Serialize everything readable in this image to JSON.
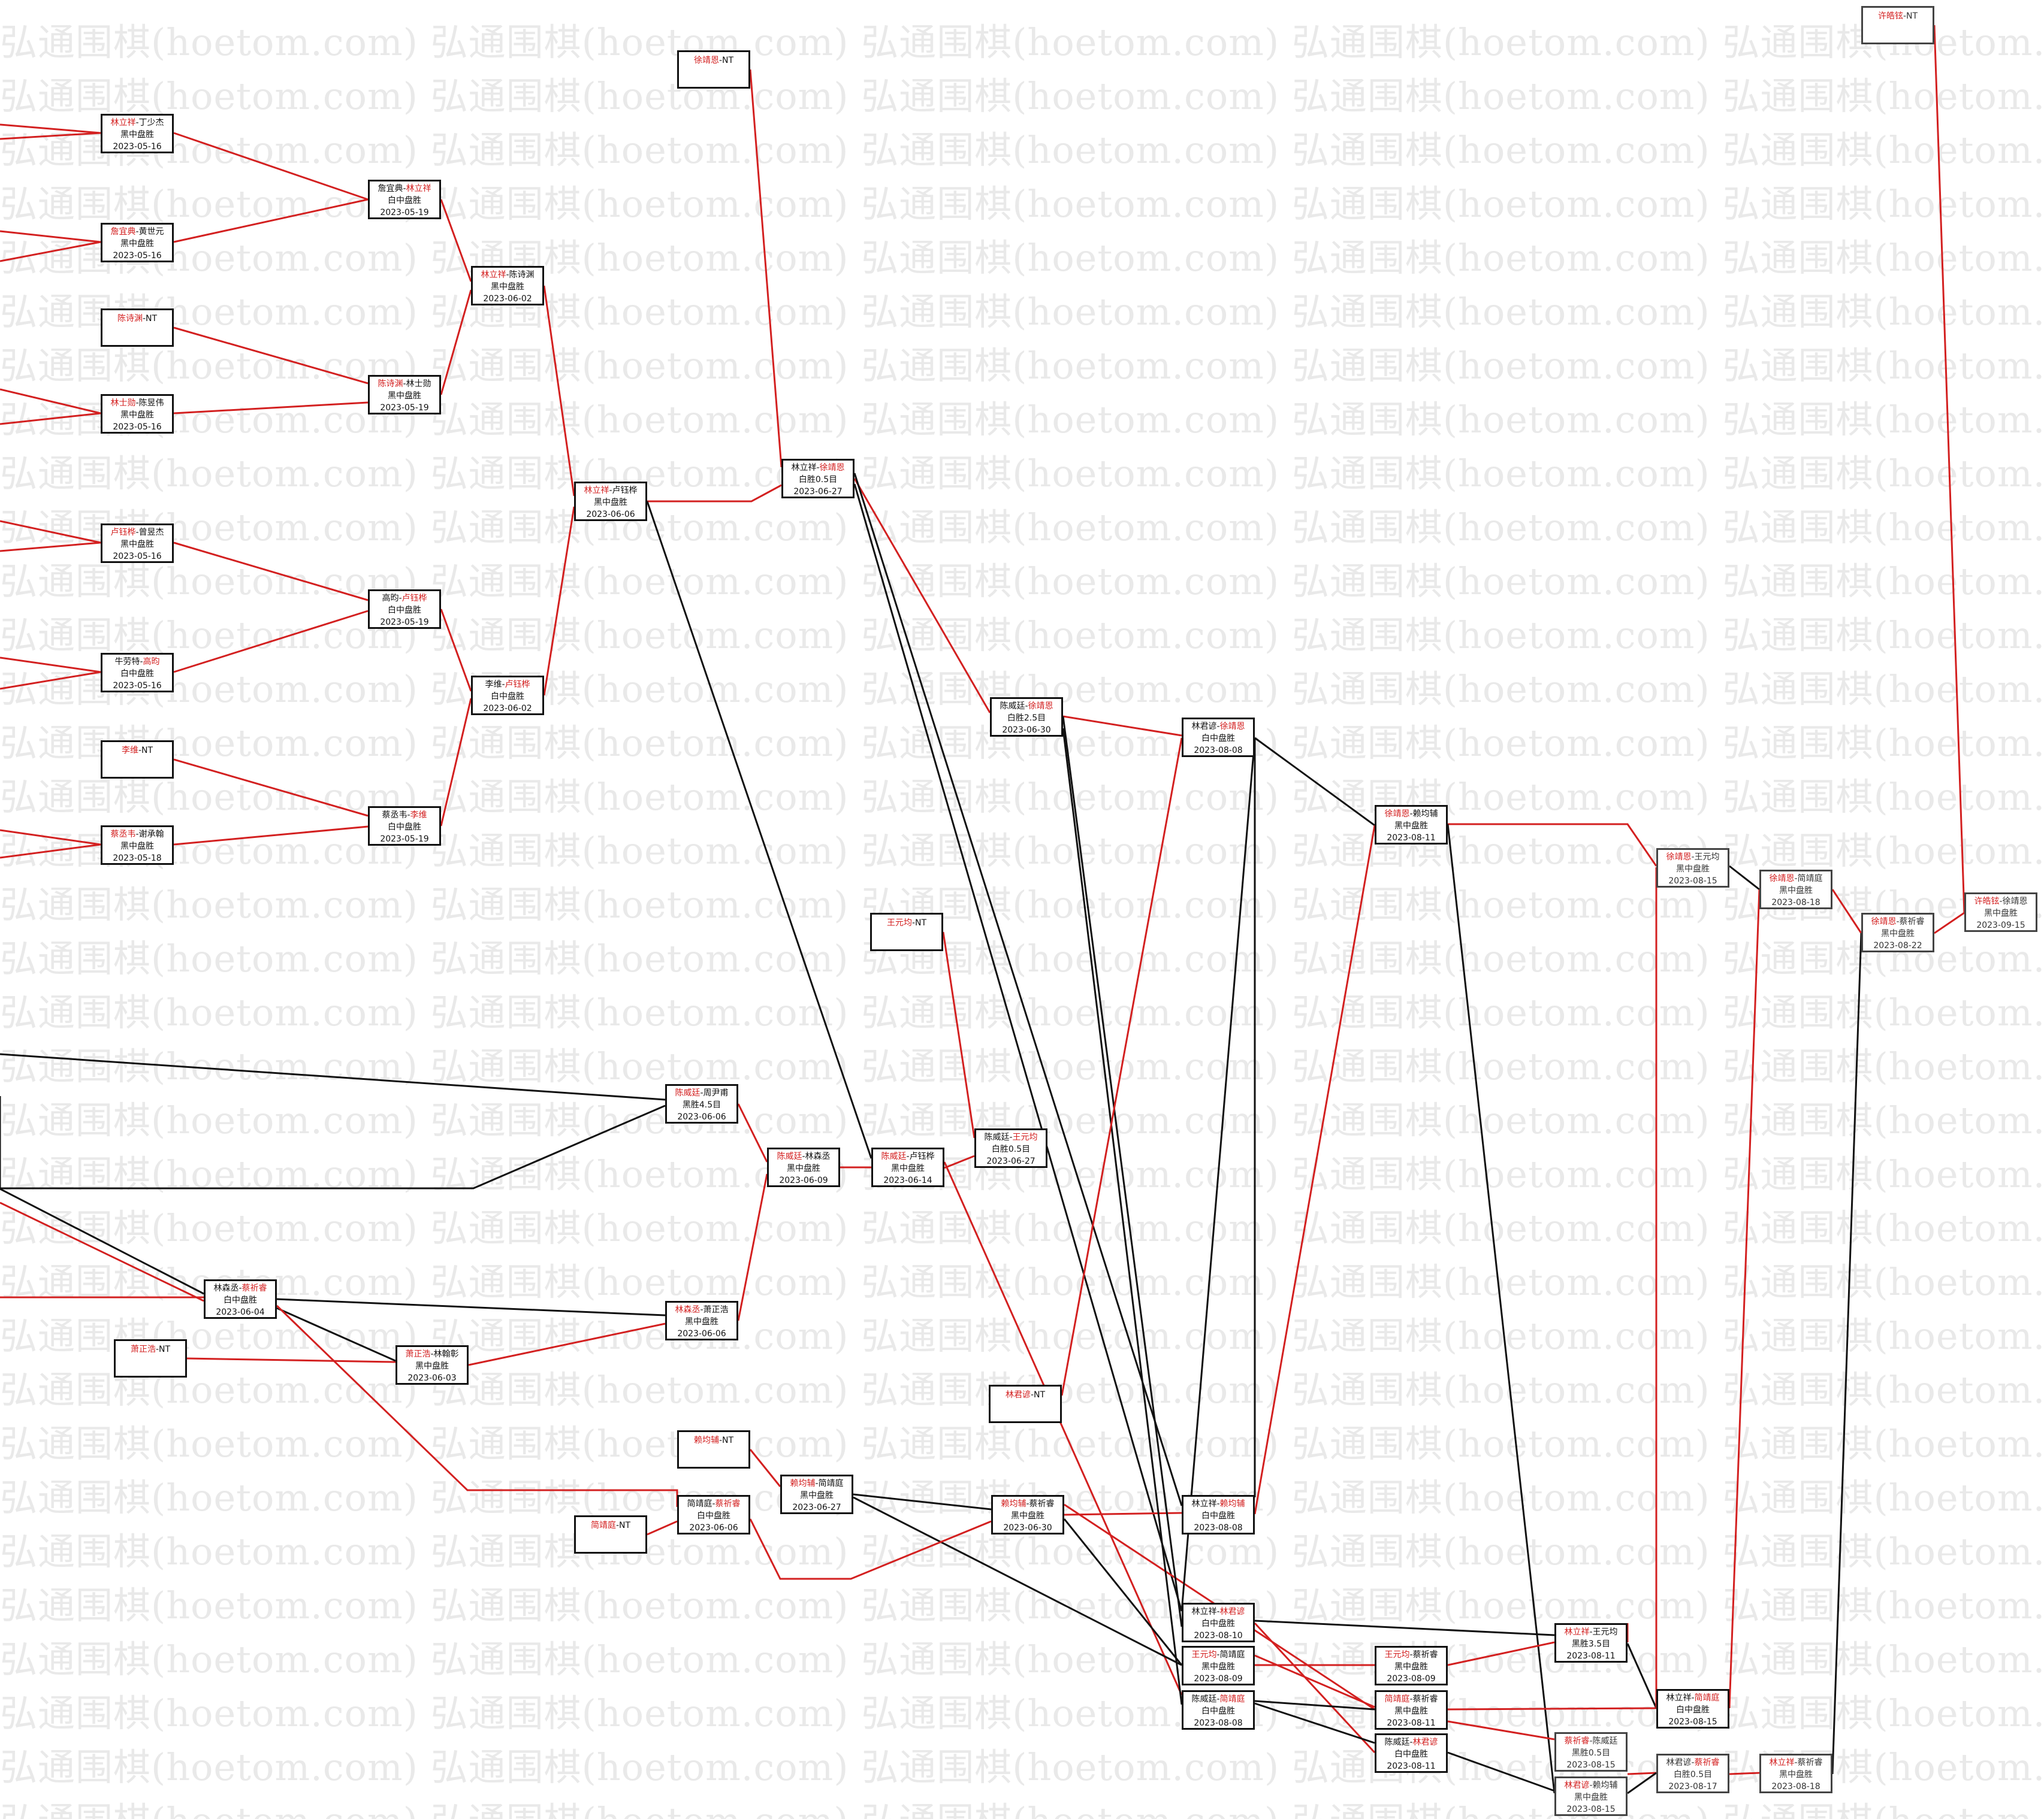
{
  "watermark": "弘通围棋(hoetom.com)",
  "colors": {
    "winner": "#d32020",
    "loser": "#111111",
    "edge_red": "#d32020",
    "edge_black": "#111111"
  },
  "matches": [
    {
      "id": "m1",
      "p1": "林立祥",
      "p2": "丁少杰",
      "w": 1,
      "result": "黑中盘胜",
      "date": "2023-05-16"
    },
    {
      "id": "m2",
      "p1": "詹宜典",
      "p2": "黄世元",
      "w": 1,
      "result": "黑中盘胜",
      "date": "2023-05-16"
    },
    {
      "id": "m3",
      "p1": "陈诗渊",
      "p2": "",
      "w": 1,
      "result": "",
      "date": ""
    },
    {
      "id": "m4",
      "p1": "林士勋",
      "p2": "陈昱伟",
      "w": 1,
      "result": "黑中盘胜",
      "date": "2023-05-16"
    },
    {
      "id": "m5",
      "p1": "卢钰桦",
      "p2": "曾昱杰",
      "w": 1,
      "result": "黑中盘胜",
      "date": "2023-05-16"
    },
    {
      "id": "m6",
      "p1": "牛劳特",
      "p2": "高昀",
      "w": 2,
      "result": "白中盘胜",
      "date": "2023-05-16"
    },
    {
      "id": "m7",
      "p1": "李维",
      "p2": "",
      "w": 1,
      "result": "",
      "date": ""
    },
    {
      "id": "m8",
      "p1": "蔡丞韦",
      "p2": "谢承翰",
      "w": 1,
      "result": "黑中盘胜",
      "date": "2023-05-18"
    },
    {
      "id": "m9",
      "p1": "詹宜典",
      "p2": "林立祥",
      "w": 2,
      "result": "白中盘胜",
      "date": "2023-05-19"
    },
    {
      "id": "m10",
      "p1": "陈诗渊",
      "p2": "林士勋",
      "w": 1,
      "result": "黑中盘胜",
      "date": "2023-05-19"
    },
    {
      "id": "m11",
      "p1": "高昀",
      "p2": "卢钰桦",
      "w": 2,
      "result": "白中盘胜",
      "date": "2023-05-19"
    },
    {
      "id": "m12",
      "p1": "蔡丞韦",
      "p2": "李维",
      "w": 2,
      "result": "白中盘胜",
      "date": "2023-05-19"
    },
    {
      "id": "m13",
      "p1": "林立祥",
      "p2": "陈诗渊",
      "w": 1,
      "result": "黑中盘胜",
      "date": "2023-06-02"
    },
    {
      "id": "m14",
      "p1": "李维",
      "p2": "卢钰桦",
      "w": 2,
      "result": "白中盘胜",
      "date": "2023-06-02"
    },
    {
      "id": "m15",
      "p1": "林立祥",
      "p2": "卢钰桦",
      "w": 1,
      "result": "黑中盘胜",
      "date": "2023-06-06"
    },
    {
      "id": "m16",
      "p1": "徐靖恩",
      "p2": "",
      "w": 1,
      "result": "",
      "date": ""
    },
    {
      "id": "m17",
      "p1": "林立祥",
      "p2": "徐靖恩",
      "w": 2,
      "result": "白胜0.5目",
      "date": "2023-06-27"
    },
    {
      "id": "m18",
      "p1": "陈威廷",
      "p2": "周尹甫",
      "w": 1,
      "result": "黑胜4.5目",
      "date": "2023-06-06"
    },
    {
      "id": "m19",
      "p1": "林森丞",
      "p2": "蔡祈睿",
      "w": 2,
      "result": "白中盘胜",
      "date": "2023-06-04"
    },
    {
      "id": "m20",
      "p1": "萧正浩",
      "p2": "",
      "w": 1,
      "result": "",
      "date": ""
    },
    {
      "id": "m21",
      "p1": "萧正浩",
      "p2": "林翰彰",
      "w": 1,
      "result": "黑中盘胜",
      "date": "2023-06-03"
    },
    {
      "id": "m22",
      "p1": "林森丞",
      "p2": "萧正浩",
      "w": 1,
      "result": "黑中盘胜",
      "date": "2023-06-06"
    },
    {
      "id": "m23",
      "p1": "陈威廷",
      "p2": "林森丞",
      "w": 1,
      "result": "黑中盘胜",
      "date": "2023-06-09"
    },
    {
      "id": "m24",
      "p1": "陈威廷",
      "p2": "卢钰桦",
      "w": 1,
      "result": "黑中盘胜",
      "date": "2023-06-14"
    },
    {
      "id": "m25",
      "p1": "王元均",
      "p2": "",
      "w": 1,
      "result": "",
      "date": ""
    },
    {
      "id": "m26",
      "p1": "陈威廷",
      "p2": "王元均",
      "w": 2,
      "result": "白胜0.5目",
      "date": "2023-06-27"
    },
    {
      "id": "m27",
      "p1": "陈威廷",
      "p2": "徐靖恩",
      "w": 2,
      "result": "白胜2.5目",
      "date": "2023-06-30"
    },
    {
      "id": "m28",
      "p1": "林君谚",
      "p2": "徐靖恩",
      "w": 2,
      "result": "白中盘胜",
      "date": "2023-08-08"
    },
    {
      "id": "m29",
      "p1": "林君谚",
      "p2": "",
      "w": 1,
      "result": "",
      "date": ""
    },
    {
      "id": "m30",
      "p1": "赖均辅",
      "p2": "",
      "w": 1,
      "result": "",
      "date": ""
    },
    {
      "id": "m31",
      "p1": "赖均辅",
      "p2": "简靖庭",
      "w": 1,
      "result": "黑中盘胜",
      "date": "2023-06-27"
    },
    {
      "id": "m32",
      "p1": "简靖庭",
      "p2": "",
      "w": 1,
      "result": "",
      "date": ""
    },
    {
      "id": "m33",
      "p1": "简靖庭",
      "p2": "蔡祈睿",
      "w": 2,
      "result": "白中盘胜",
      "date": "2023-06-06"
    },
    {
      "id": "m34",
      "p1": "赖均辅",
      "p2": "蔡祈睿",
      "w": 1,
      "result": "黑中盘胜",
      "date": "2023-06-30"
    },
    {
      "id": "m35",
      "p1": "林立祥",
      "p2": "赖均辅",
      "w": 2,
      "result": "白中盘胜",
      "date": "2023-08-08"
    },
    {
      "id": "m36",
      "p1": "林立祥",
      "p2": "林君谚",
      "w": 2,
      "result": "白中盘胜",
      "date": "2023-08-10"
    },
    {
      "id": "m37",
      "p1": "王元均",
      "p2": "简靖庭",
      "w": 1,
      "result": "黑中盘胜",
      "date": "2023-08-09"
    },
    {
      "id": "m38",
      "p1": "陈威廷",
      "p2": "简靖庭",
      "w": 2,
      "result": "白中盘胜",
      "date": "2023-08-08"
    },
    {
      "id": "m39",
      "p1": "徐靖恩",
      "p2": "赖均辅",
      "w": 1,
      "result": "黑中盘胜",
      "date": "2023-08-11"
    },
    {
      "id": "m40",
      "p1": "王元均",
      "p2": "蔡祈睿",
      "w": 1,
      "result": "黑中盘胜",
      "date": "2023-08-09"
    },
    {
      "id": "m41",
      "p1": "简靖庭",
      "p2": "蔡祈睿",
      "w": 1,
      "result": "黑中盘胜",
      "date": "2023-08-11"
    },
    {
      "id": "m42",
      "p1": "陈威廷",
      "p2": "林君谚",
      "w": 2,
      "result": "白中盘胜",
      "date": "2023-08-11"
    },
    {
      "id": "m43",
      "p1": "林立祥",
      "p2": "王元均",
      "w": 1,
      "result": "黑胜3.5目",
      "date": "2023-08-11"
    },
    {
      "id": "m44",
      "p1": "徐靖恩",
      "p2": "王元均",
      "w": 1,
      "result": "黑中盘胜",
      "date": "2023-08-15"
    },
    {
      "id": "m45",
      "p1": "林立祥",
      "p2": "简靖庭",
      "w": 2,
      "result": "白中盘胜",
      "date": "2023-08-15"
    },
    {
      "id": "m46",
      "p1": "蔡祈睿",
      "p2": "陈威廷",
      "w": 1,
      "result": "黑胜0.5目",
      "date": "2023-08-15"
    },
    {
      "id": "m47",
      "p1": "林君谚",
      "p2": "赖均辅",
      "w": 1,
      "result": "黑中盘胜",
      "date": "2023-08-15"
    },
    {
      "id": "m48",
      "p1": "林君谚",
      "p2": "蔡祈睿",
      "w": 2,
      "result": "白胜0.5目",
      "date": "2023-08-17"
    },
    {
      "id": "m49",
      "p1": "徐靖恩",
      "p2": "简靖庭",
      "w": 1,
      "result": "黑中盘胜",
      "date": "2023-08-18"
    },
    {
      "id": "m50",
      "p1": "林立祥",
      "p2": "蔡祈睿",
      "w": 1,
      "result": "黑中盘胜",
      "date": "2023-08-18"
    },
    {
      "id": "m51",
      "p1": "徐靖恩",
      "p2": "蔡祈睿",
      "w": 1,
      "result": "黑中盘胜",
      "date": "2023-08-22"
    },
    {
      "id": "m52",
      "p1": "许皓铉",
      "p2": "",
      "w": 1,
      "result": "",
      "date": ""
    },
    {
      "id": "m53",
      "p1": "许皓铉",
      "p2": "徐靖恩",
      "w": 1,
      "result": "黑中盘胜",
      "date": "2023-09-15"
    }
  ]
}
